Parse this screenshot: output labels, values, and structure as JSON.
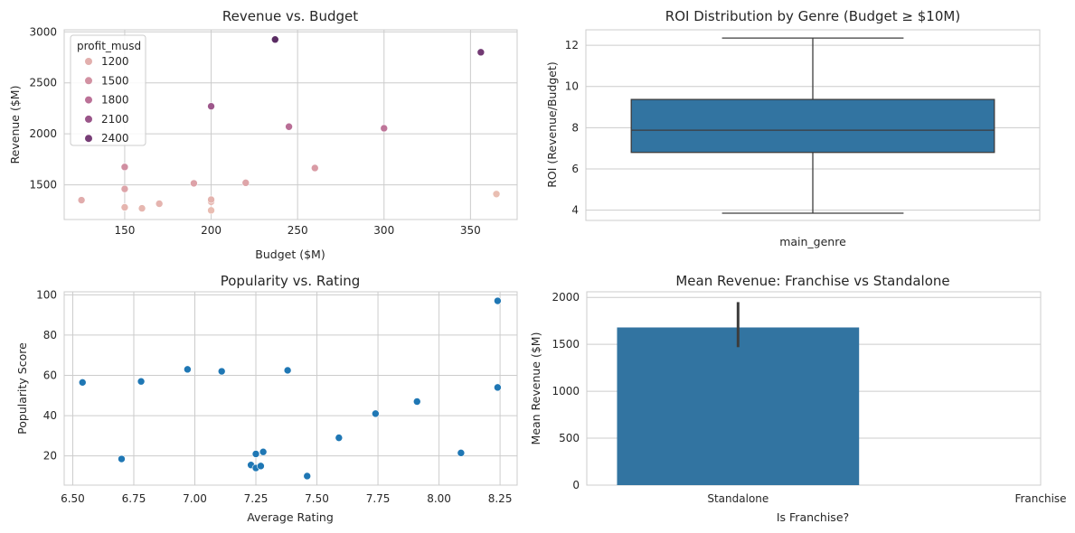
{
  "colors": {
    "grid": "#cccccc",
    "spine": "#cccccc",
    "blue": "#1f77b4",
    "bar_blue": "#3274a1",
    "dark": "#3d3d3d",
    "hue_palette": [
      "#ebc2b4",
      "#d99aa5",
      "#b96e96",
      "#8a4883",
      "#5a2c63"
    ]
  },
  "chart_data": [
    {
      "type": "scatter",
      "title": "Revenue vs. Budget",
      "xlabel": "Budget ($M)",
      "ylabel": "Revenue ($M)",
      "xlim": [
        115,
        377
      ],
      "ylim": [
        1160,
        3020
      ],
      "xticks": [
        150,
        200,
        250,
        300,
        350
      ],
      "yticks": [
        1500,
        2000,
        2500,
        3000
      ],
      "grid": true,
      "legend": {
        "title": "profit_musd",
        "position": "top-left",
        "entries": [
          1200,
          1500,
          1800,
          2100,
          2400
        ]
      },
      "hue_range": [
        1000,
        2650
      ],
      "points": [
        {
          "x": 125,
          "y": 1350,
          "profit": 1225
        },
        {
          "x": 150,
          "y": 1280,
          "profit": 1130
        },
        {
          "x": 150,
          "y": 1460,
          "profit": 1310
        },
        {
          "x": 150,
          "y": 1675,
          "profit": 1525
        },
        {
          "x": 160,
          "y": 1270,
          "profit": 1110
        },
        {
          "x": 170,
          "y": 1315,
          "profit": 1145
        },
        {
          "x": 190,
          "y": 1515,
          "profit": 1325
        },
        {
          "x": 200,
          "y": 1250,
          "profit": 1050
        },
        {
          "x": 200,
          "y": 1335,
          "profit": 1135
        },
        {
          "x": 200,
          "y": 1355,
          "profit": 1155
        },
        {
          "x": 200,
          "y": 2270,
          "profit": 2070
        },
        {
          "x": 220,
          "y": 1520,
          "profit": 1300
        },
        {
          "x": 237,
          "y": 2925,
          "profit": 2688
        },
        {
          "x": 245,
          "y": 2070,
          "profit": 1825
        },
        {
          "x": 260,
          "y": 1665,
          "profit": 1405
        },
        {
          "x": 300,
          "y": 2055,
          "profit": 1755
        },
        {
          "x": 356,
          "y": 2800,
          "profit": 2444
        },
        {
          "x": 365,
          "y": 1410,
          "profit": 1045
        }
      ]
    },
    {
      "type": "box",
      "title": "ROI Distribution by Genre (Budget ≥ $10M)",
      "xlabel": "main_genre",
      "ylabel": "ROI (Revenue/Budget)",
      "ylim": [
        3.5,
        12.75
      ],
      "yticks": [
        4,
        6,
        8,
        10,
        12
      ],
      "grid": true,
      "box": {
        "whisker_low": 3.85,
        "q1": 6.8,
        "median": 7.88,
        "q3": 9.37,
        "whisker_high": 12.35
      }
    },
    {
      "type": "scatter",
      "title": "Popularity vs. Rating",
      "xlabel": "Average Rating",
      "ylabel": "Popularity Score",
      "xlim": [
        6.465,
        8.32
      ],
      "ylim": [
        5.5,
        101.5
      ],
      "xticks": [
        "6.50",
        "6.75",
        "7.00",
        "7.25",
        "7.50",
        "7.75",
        "8.00",
        "8.25"
      ],
      "yticks": [
        20,
        40,
        60,
        80,
        100
      ],
      "grid": true,
      "points": [
        {
          "x": 6.54,
          "y": 56.5
        },
        {
          "x": 6.7,
          "y": 18.5
        },
        {
          "x": 6.78,
          "y": 57.0
        },
        {
          "x": 6.97,
          "y": 63.0
        },
        {
          "x": 7.11,
          "y": 62.0
        },
        {
          "x": 7.23,
          "y": 15.5
        },
        {
          "x": 7.25,
          "y": 21.0
        },
        {
          "x": 7.25,
          "y": 14.0
        },
        {
          "x": 7.27,
          "y": 15.0
        },
        {
          "x": 7.28,
          "y": 22.0
        },
        {
          "x": 7.38,
          "y": 62.5
        },
        {
          "x": 7.46,
          "y": 10.0
        },
        {
          "x": 7.59,
          "y": 29.0
        },
        {
          "x": 7.74,
          "y": 41.0
        },
        {
          "x": 7.91,
          "y": 47.0
        },
        {
          "x": 8.09,
          "y": 21.5
        },
        {
          "x": 8.24,
          "y": 97.0
        },
        {
          "x": 8.24,
          "y": 54.0
        }
      ]
    },
    {
      "type": "bar",
      "title": "Mean Revenue: Franchise vs Standalone",
      "xlabel": "Is Franchise?",
      "ylabel": "Mean Revenue ($M)",
      "categories": [
        "Standalone",
        "Franchise"
      ],
      "values": [
        1680,
        null
      ],
      "error_bars": [
        [
          1470,
          1950
        ],
        null
      ],
      "ylim": [
        0,
        2060
      ],
      "yticks": [
        0,
        500,
        1000,
        1500,
        2000
      ],
      "grid": true
    }
  ]
}
